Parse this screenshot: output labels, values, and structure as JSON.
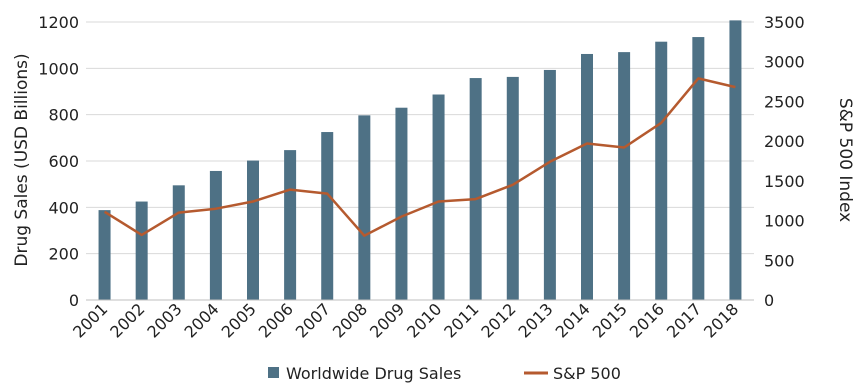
{
  "chart_data": {
    "type": "bar",
    "categories": [
      "2001",
      "2002",
      "2003",
      "2004",
      "2005",
      "2006",
      "2007",
      "2008",
      "2009",
      "2010",
      "2011",
      "2012",
      "2013",
      "2014",
      "2015",
      "2016",
      "2017",
      "2018"
    ],
    "series": [
      {
        "name": "Worldwide Drug Sales",
        "type": "bar",
        "axis": "left",
        "color": "#4e7185",
        "values": [
          388,
          425,
          495,
          557,
          602,
          647,
          725,
          797,
          830,
          887,
          958,
          963,
          993,
          1062,
          1070,
          1115,
          1135,
          1207
        ]
      },
      {
        "name": "S&P 500",
        "type": "line",
        "axis": "right",
        "color": "#b55a2f",
        "values": [
          1110,
          820,
          1100,
          1150,
          1240,
          1390,
          1340,
          810,
          1050,
          1240,
          1270,
          1450,
          1740,
          1970,
          1920,
          2230,
          2790,
          2680
        ]
      }
    ],
    "ylabel": "Drug Sales (USD Billions)",
    "ylim": [
      0,
      1200
    ],
    "yticks": [
      "0",
      "200",
      "400",
      "600",
      "800",
      "1000",
      "1200"
    ],
    "y2label": "S&P 500 Index",
    "y2lim": [
      0,
      3500
    ],
    "y2ticks": [
      "0",
      "500",
      "1000",
      "1500",
      "2000",
      "2500",
      "3000",
      "3500"
    ],
    "grid": true,
    "legend_position": "bottom-center"
  }
}
